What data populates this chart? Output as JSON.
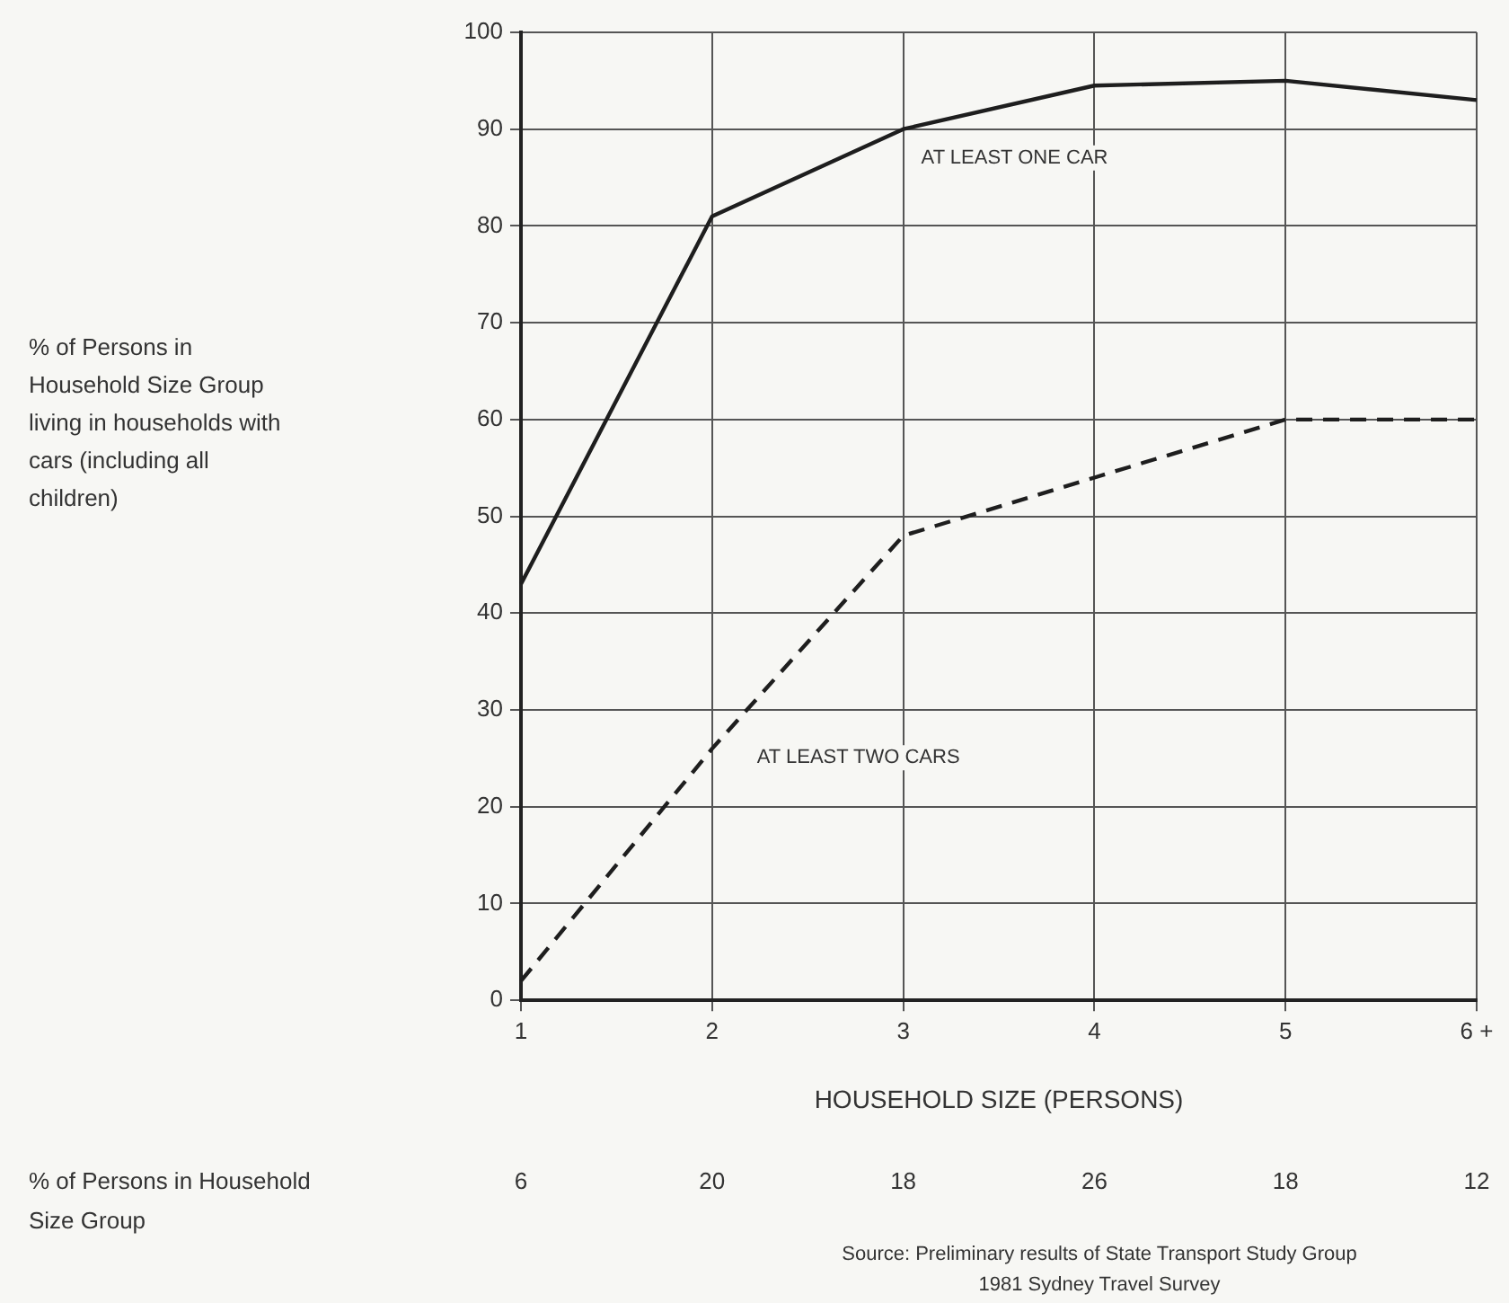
{
  "chart_data": {
    "type": "line",
    "xlabel": "HOUSEHOLD SIZE (PERSONS)",
    "categories": [
      "1",
      "2",
      "3",
      "4",
      "5",
      "6 +"
    ],
    "series": [
      {
        "name": "AT LEAST ONE CAR",
        "color": "#1e1e1e",
        "line_style": "solid",
        "values": [
          43,
          81,
          90,
          94.5,
          95,
          93
        ]
      },
      {
        "name": "AT LEAST TWO CARS",
        "color": "#1e1e1e",
        "line_style": "dashed",
        "values": [
          2,
          26,
          48,
          54,
          60,
          60
        ]
      }
    ],
    "ylim": [
      0,
      100
    ],
    "yticks": [
      0,
      10,
      20,
      30,
      40,
      50,
      60,
      70,
      80,
      90,
      100
    ],
    "grid": true,
    "legend": false,
    "marker": "none",
    "annotations": [
      "% of Persons in Household Size Group living in households with cars (including all children)",
      "% of Persons in Household Size Group",
      "6",
      "20",
      "18",
      "26",
      "18",
      "12",
      "Source: Preliminary results of State Transport Study Group",
      "1981 Sydney Travel Survey"
    ]
  }
}
